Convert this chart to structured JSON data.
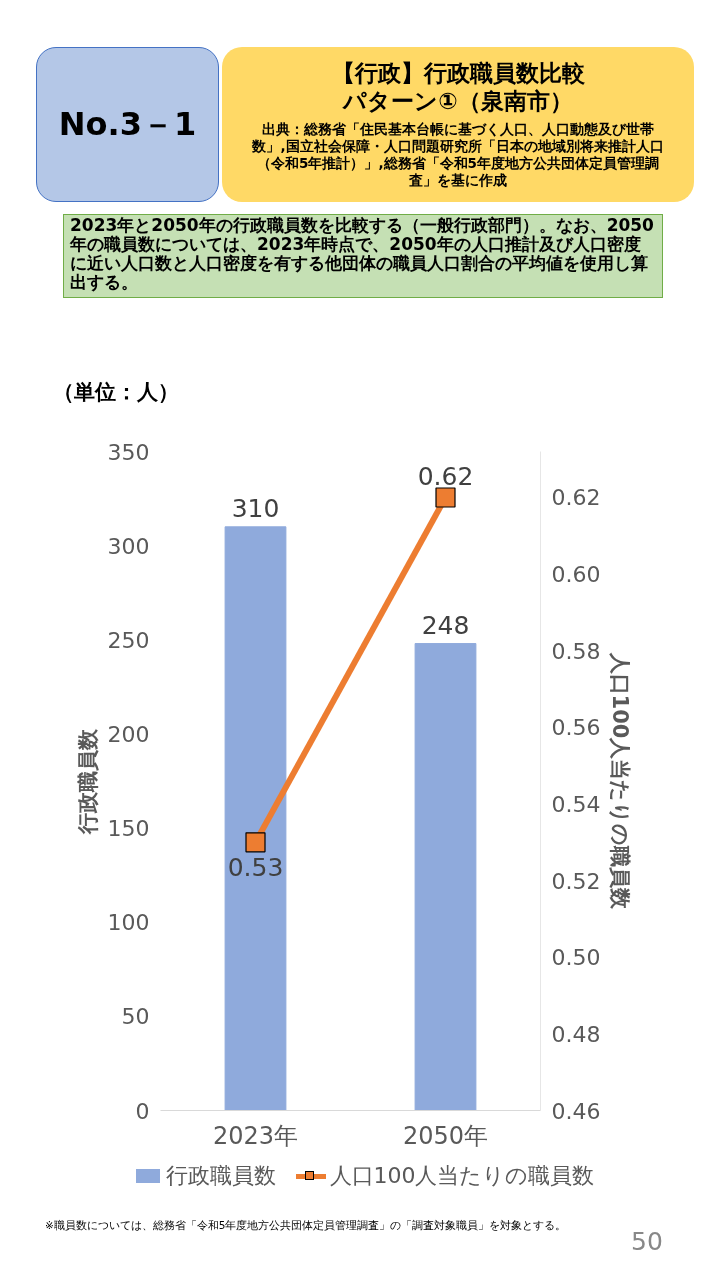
{
  "chart_data": {
    "type": "bar",
    "title": "【行政】行政職員数比較パターン①（泉南市）",
    "subtitle": "出典：総務省「住民基本台帳に基づく人口、人口動態及び世帯数」,国立社会保障・人口問題研究所「日本の地域別将来推計人口（令和5年推計）」,総務省「令和5年度地方公共団体定員管理調査」を基に作成",
    "annotations": [
      "No.3－1",
      "2023年と2050年の行政職員数を比較する（一般行政部門）。なお、2050年の職員数については、2023年時点で、2050年の人口推計及び人口密度に近い人口数と人口密度を有する他団体の職員人口割合の平均値を使用し算出する。",
      "（単位：人）",
      "※職員数については、総務省「令和5年度地方公共団体定員管理調査」の「調査対象職員」を対象とする。",
      "50"
    ],
    "categories": [
      "2023年",
      "2050年"
    ],
    "series": [
      {
        "name": "行政職員数",
        "color": "#8faadc",
        "values": [
          310,
          248
        ]
      },
      {
        "name": "人口100人当たりの職員数",
        "type": "line",
        "axis": "y2",
        "color": "#ed7d31",
        "marker": "square",
        "values": [
          0.53,
          0.62
        ]
      }
    ],
    "ylabel": "行政職員数",
    "y2label": "人口100人当たりの職員数",
    "ylim": [
      0,
      350
    ],
    "yticks": [
      0,
      50,
      100,
      150,
      200,
      250,
      300,
      350
    ],
    "y2lim": [
      0.46,
      0.632
    ],
    "y2ticks": [
      0.46,
      0.48,
      {
        "value": 0.5,
        "label": "0.50"
      },
      0.52,
      0.54,
      0.56,
      0.58,
      {
        "value": 0.6,
        "label": "0.60"
      },
      0.62
    ],
    "data_labels": true,
    "grid": false,
    "legend": "bottom"
  }
}
